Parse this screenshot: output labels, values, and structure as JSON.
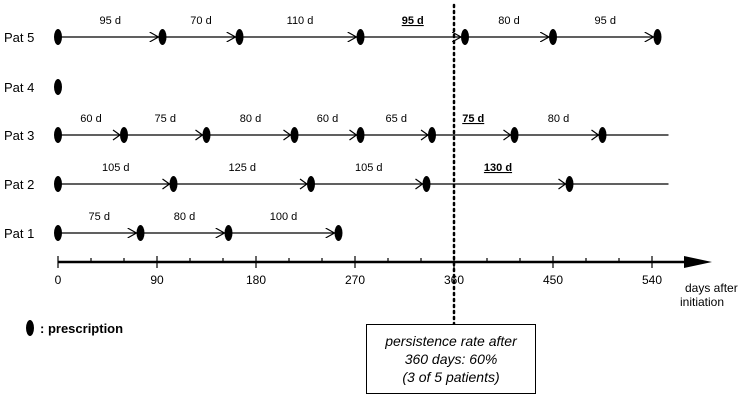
{
  "chart_data": {
    "type": "timeline",
    "x_unit": "days",
    "xlim": [
      0,
      580
    ],
    "x_ticks": [
      "0",
      "90",
      "180",
      "270",
      "360",
      "450",
      "540"
    ],
    "x_axis_caption": [
      "days after",
      "initiation"
    ],
    "reference_line_day": 360,
    "patients": [
      {
        "label": "Pat 5",
        "prescription_days": [
          0,
          95,
          165,
          275,
          370,
          450,
          545
        ],
        "intervals": [
          {
            "label": "95 d",
            "highlight": false
          },
          {
            "label": "70 d",
            "highlight": false
          },
          {
            "label": "110 d",
            "highlight": false
          },
          {
            "label": "95 d",
            "highlight": true
          },
          {
            "label": "80 d",
            "highlight": false
          },
          {
            "label": "95 d",
            "highlight": false
          }
        ],
        "line_end_day": 545,
        "arrowheads": true
      },
      {
        "label": "Pat 4",
        "prescription_days": [
          0
        ],
        "intervals": [],
        "line_end_day": null,
        "arrowheads": false
      },
      {
        "label": "Pat 3",
        "prescription_days": [
          0,
          60,
          135,
          215,
          275,
          340,
          415,
          495
        ],
        "intervals": [
          {
            "label": "60 d",
            "highlight": false
          },
          {
            "label": "75 d",
            "highlight": false
          },
          {
            "label": "80 d",
            "highlight": false
          },
          {
            "label": "60 d",
            "highlight": false
          },
          {
            "label": "65 d",
            "highlight": false
          },
          {
            "label": "75 d",
            "highlight": true
          },
          {
            "label": "80 d",
            "highlight": false
          }
        ],
        "line_end_day": 555,
        "arrowheads": false
      },
      {
        "label": "Pat 2",
        "prescription_days": [
          0,
          105,
          230,
          335,
          465
        ],
        "intervals": [
          {
            "label": "105 d",
            "highlight": false
          },
          {
            "label": "125 d",
            "highlight": false
          },
          {
            "label": "105 d",
            "highlight": false
          },
          {
            "label": "130 d",
            "highlight": true
          }
        ],
        "line_end_day": 555,
        "arrowheads": false
      },
      {
        "label": "Pat 1",
        "prescription_days": [
          0,
          75,
          155,
          255
        ],
        "intervals": [
          {
            "label": "75 d",
            "highlight": false
          },
          {
            "label": "80 d",
            "highlight": false
          },
          {
            "label": "100 d",
            "highlight": false
          }
        ],
        "line_end_day": 255,
        "arrowheads": true
      }
    ],
    "legend": {
      "marker": "prescription",
      "text": ": prescription"
    },
    "note_lines": [
      "persistence rate after",
      "360 days: 60%",
      "(3 of 5 patients)"
    ]
  }
}
